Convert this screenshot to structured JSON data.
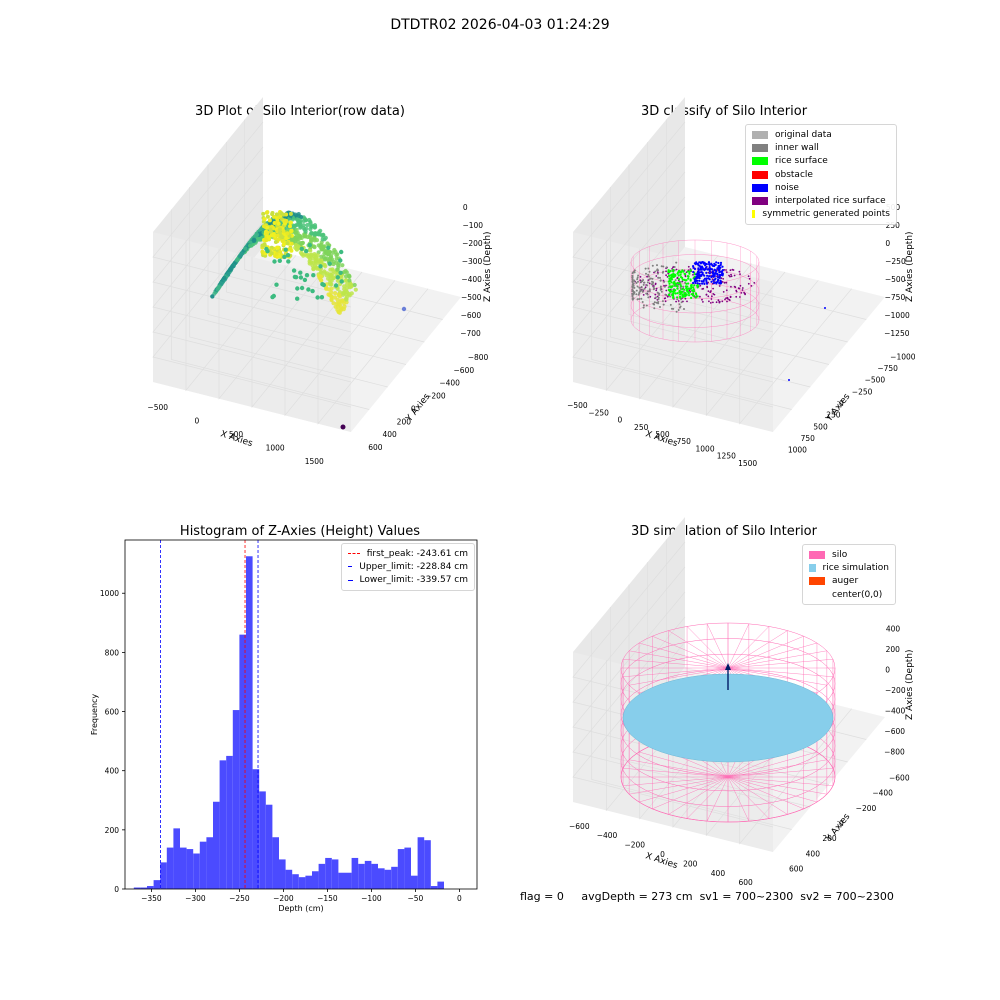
{
  "figure": {
    "title": "DTDTR02 2026-04-03 01:24:29"
  },
  "colors": {
    "pink": "#ff69b4",
    "skyblue": "#87ceeb",
    "auger": "#ff4500",
    "green": "#00ff00",
    "blue": "#0000ff",
    "gray": "#808080",
    "lightgray": "#b0b0b0",
    "purple": "#800080",
    "yellow": "#ffff00",
    "red": "#ff0000",
    "hist": "#4b4bff"
  },
  "panel_raw": {
    "title": "3D Plot of Silo Interior(row data)",
    "xlabel": "X Axies",
    "ylabel": "Y Axies",
    "zlabel": "Z Axies (Depth)",
    "xticks": [
      "−500",
      "0",
      "500",
      "1000",
      "1500"
    ],
    "yticks": [
      "600",
      "400",
      "200",
      "0",
      "−200",
      "−400",
      "−600",
      "−800"
    ],
    "zticks": [
      "0",
      "−100",
      "−200",
      "−300",
      "−400",
      "−500",
      "−600",
      "−700"
    ]
  },
  "panel_classify": {
    "title": "3D classify of Silo Interior",
    "xlabel": "X Axies",
    "ylabel": "Y Axies",
    "zlabel": "Z Axies (Depth)",
    "xticks": [
      "−500",
      "−250",
      "0",
      "250",
      "500",
      "750",
      "1000",
      "1250",
      "1500"
    ],
    "yticks": [
      "1000",
      "750",
      "500",
      "250",
      "0",
      "−250",
      "−500",
      "−750",
      "−1000"
    ],
    "zticks": [
      "500",
      "250",
      "0",
      "−250",
      "−500",
      "−750",
      "−1000",
      "−1250"
    ],
    "ztick_partial": "0",
    "legend": [
      {
        "label": "original data",
        "color": "#b0b0b0"
      },
      {
        "label": "inner wall",
        "color": "#808080"
      },
      {
        "label": "rice surface",
        "color": "#00ff00"
      },
      {
        "label": "obstacle",
        "color": "#ff0000"
      },
      {
        "label": "noise",
        "color": "#0000ff"
      },
      {
        "label": "interpolated rice surface",
        "color": "#800080"
      },
      {
        "label": "symmetric generated points",
        "color": "#ffff00"
      }
    ]
  },
  "panel_sim": {
    "title": "3D simulation of Silo Interior",
    "xlabel": "X Axies",
    "ylabel": "Y Axies",
    "zlabel": "Z Axies (Depth)",
    "xticks": [
      "−600",
      "−400",
      "−200",
      "0",
      "200",
      "400",
      "600"
    ],
    "yticks": [
      "600",
      "400",
      "200",
      "0",
      "−200",
      "−400",
      "−600"
    ],
    "zticks": [
      "400",
      "200",
      "0",
      "−200",
      "−400",
      "−600",
      "−800"
    ],
    "legend": [
      {
        "label": "silo",
        "color": "#ff69b4"
      },
      {
        "label": "rice simulation",
        "color": "#87ceeb"
      },
      {
        "label": "auger",
        "color": "#ff4500"
      },
      {
        "label": "center(0,0)",
        "color": "#ffffff"
      }
    ]
  },
  "status": {
    "flag": "flag = 0",
    "avg": "avgDepth = 273 cm",
    "sv1": "sv1 = 700~2300",
    "sv2": "sv2 = 700~2300"
  },
  "chart_data": [
    {
      "type": "histogram",
      "title": "Histogram of Z-Axies (Height) Values",
      "xlabel": "Depth (cm)",
      "ylabel": "Frequency",
      "xlim": [
        -380,
        20
      ],
      "ylim": [
        0,
        1180
      ],
      "xticks": [
        -350,
        -300,
        -250,
        -200,
        -150,
        -100,
        -50,
        0
      ],
      "yticks": [
        0,
        200,
        400,
        600,
        800,
        1000
      ],
      "bin_start": -370,
      "bin_width": 7.5,
      "counts": [
        5,
        5,
        10,
        30,
        90,
        140,
        205,
        140,
        135,
        120,
        160,
        175,
        295,
        435,
        450,
        605,
        860,
        1125,
        405,
        330,
        285,
        175,
        100,
        65,
        50,
        40,
        45,
        60,
        85,
        105,
        100,
        55,
        55,
        105,
        85,
        95,
        85,
        70,
        65,
        75,
        135,
        140,
        45,
        175,
        165,
        10,
        25
      ],
      "vlines": [
        {
          "label": "first_peak: -243.61 cm",
          "x": -243.61,
          "color": "#ff0000"
        },
        {
          "label": "Upper_limit: -228.84 cm",
          "x": -228.84,
          "color": "#0000ff"
        },
        {
          "label": "Lower_limit: -339.57 cm",
          "x": -339.57,
          "color": "#0000ff"
        }
      ]
    }
  ]
}
